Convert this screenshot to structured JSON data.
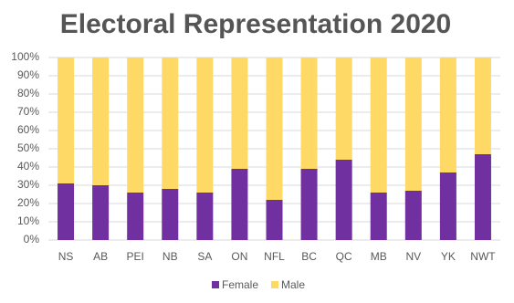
{
  "chart_data": {
    "type": "stacked_bar",
    "title": "Electoral Representation 2020",
    "categories": [
      "NS",
      "AB",
      "PEI",
      "NB",
      "SA",
      "ON",
      "NFL",
      "BC",
      "QC",
      "MB",
      "NV",
      "YK",
      "NWT"
    ],
    "series": [
      {
        "name": "Female",
        "color": "#7030a0",
        "values": [
          31,
          30,
          26,
          28,
          26,
          39,
          22,
          39,
          44,
          26,
          27,
          37,
          47
        ]
      },
      {
        "name": "Male",
        "color": "#ffd966",
        "values": [
          69,
          70,
          74,
          72,
          74,
          61,
          78,
          61,
          56,
          74,
          73,
          63,
          53
        ]
      }
    ],
    "ylim": [
      0,
      100
    ],
    "yticks": [
      {
        "value": 0,
        "label": "0%"
      },
      {
        "value": 10,
        "label": "10%"
      },
      {
        "value": 20,
        "label": "20%"
      },
      {
        "value": 30,
        "label": "30%"
      },
      {
        "value": 40,
        "label": "40%"
      },
      {
        "value": 50,
        "label": "50%"
      },
      {
        "value": 60,
        "label": "60%"
      },
      {
        "value": 70,
        "label": "70%"
      },
      {
        "value": 80,
        "label": "80%"
      },
      {
        "value": 90,
        "label": "90%"
      },
      {
        "value": 100,
        "label": "100%"
      }
    ],
    "grid": true,
    "legend": "bottom"
  }
}
